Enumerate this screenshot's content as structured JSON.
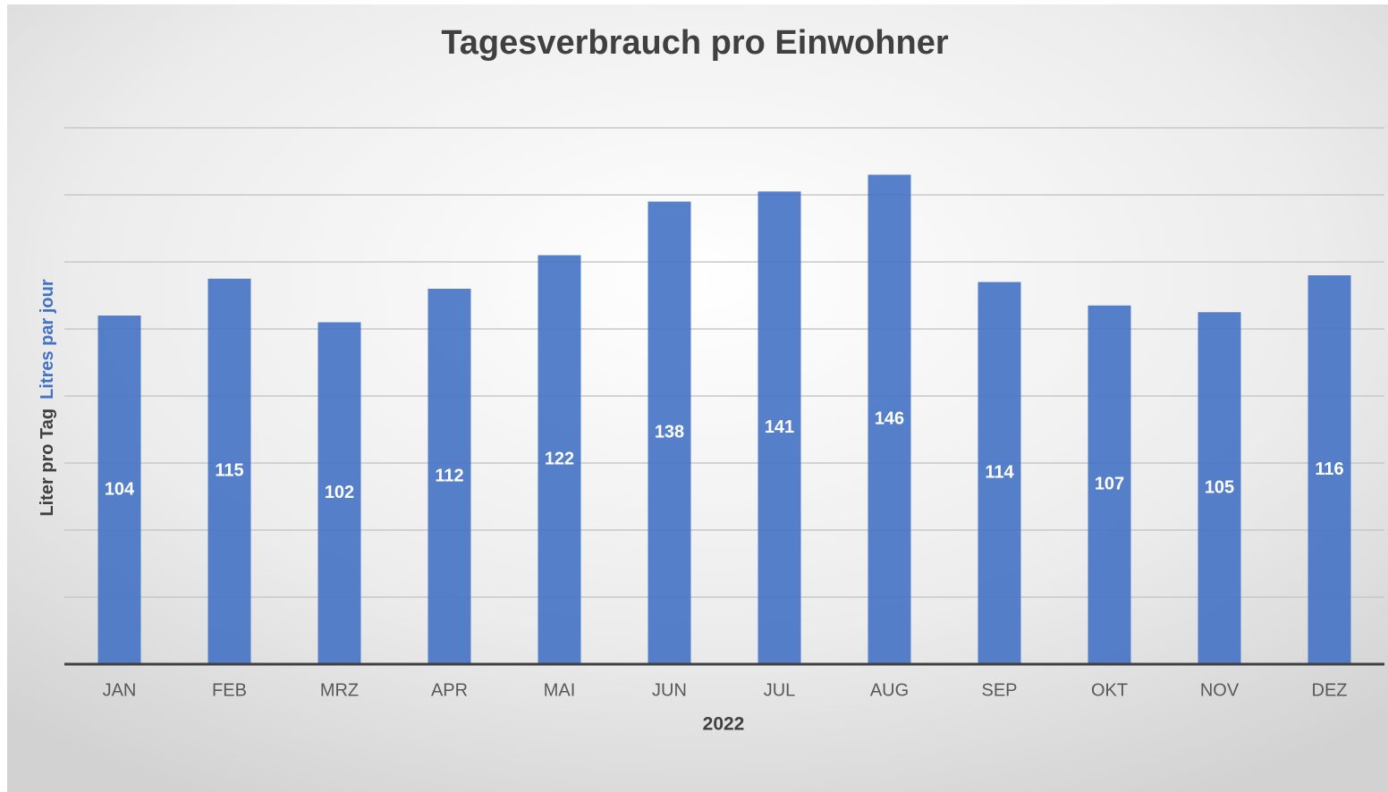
{
  "chart_data": {
    "type": "bar",
    "title": "Tagesverbrauch pro Einwohner",
    "ylabel": "Liter pro Tag",
    "ylabel_fr": "Litres par jour",
    "xlabel": "2022",
    "categories": [
      "JAN",
      "FEB",
      "MRZ",
      "APR",
      "MAI",
      "JUN",
      "JUL",
      "AUG",
      "SEP",
      "OKT",
      "NOV",
      "DEZ"
    ],
    "values": [
      104,
      115,
      102,
      112,
      122,
      138,
      141,
      146,
      114,
      107,
      105,
      116
    ],
    "color": "#4472c4",
    "ylim": [
      0,
      160
    ],
    "yticks": [
      0,
      20,
      40,
      60,
      80,
      100,
      120,
      140,
      160
    ],
    "grid": true
  }
}
